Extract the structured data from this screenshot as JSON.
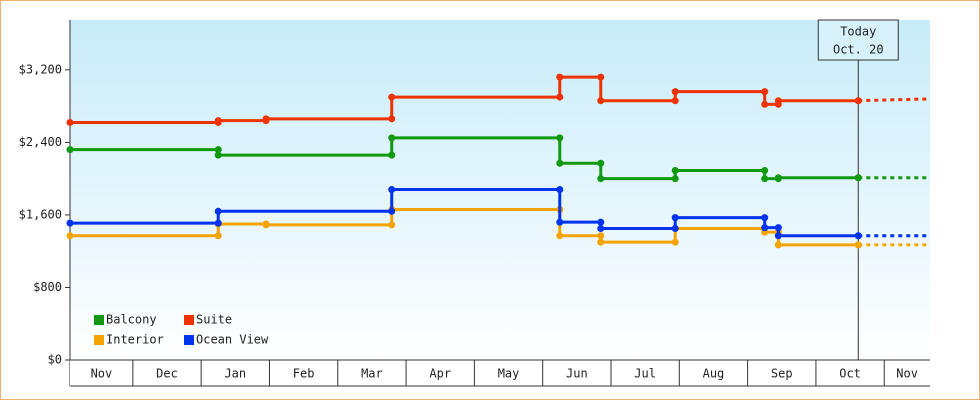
{
  "chart_data": {
    "type": "line",
    "step": true,
    "x_categories": [
      "Nov",
      "Dec",
      "Jan",
      "Feb",
      "Mar",
      "Apr",
      "May",
      "Jun",
      "Jul",
      "Aug",
      "Sep",
      "Oct",
      "Nov"
    ],
    "xlim": [
      0.08,
      12.67
    ],
    "ylim": [
      0,
      3750
    ],
    "yticks": [
      {
        "value": 0,
        "label": "$0"
      },
      {
        "value": 800,
        "label": "$800"
      },
      {
        "value": 1600,
        "label": "$1,600"
      },
      {
        "value": 2400,
        "label": "$2,400"
      },
      {
        "value": 3200,
        "label": "$3,200"
      }
    ],
    "grid": false,
    "legend": "lower left",
    "today": {
      "x": 11.62,
      "label": "Today",
      "date": "Oct. 20"
    },
    "forecast_x": [
      11.62,
      12.67
    ],
    "series": [
      {
        "name": "Balcony",
        "color": "#119911",
        "x": [
          0.08,
          2.25,
          4.79,
          7.25,
          7.85,
          8.94,
          10.25,
          10.45,
          11.62
        ],
        "values": [
          2320,
          2260,
          2450,
          2170,
          2000,
          2090,
          2000,
          2010,
          2010
        ],
        "forecast": [
          2010,
          2010
        ]
      },
      {
        "name": "Suite",
        "color": "#ee3300",
        "x": [
          0.08,
          2.25,
          2.95,
          4.79,
          7.25,
          7.85,
          8.94,
          10.25,
          10.45,
          11.62
        ],
        "values": [
          2620,
          2640,
          2660,
          2900,
          3120,
          2860,
          2960,
          2820,
          2860,
          2860
        ],
        "forecast": [
          2860,
          2880
        ]
      },
      {
        "name": "Interior",
        "color": "#f5a300",
        "x": [
          0.08,
          2.25,
          2.95,
          4.79,
          7.25,
          7.85,
          8.94,
          10.25,
          10.45,
          11.62
        ],
        "values": [
          1370,
          1500,
          1490,
          1660,
          1370,
          1300,
          1450,
          1410,
          1270,
          1270
        ],
        "forecast": [
          1270,
          1270
        ]
      },
      {
        "name": "Ocean View",
        "color": "#0033ee",
        "x": [
          0.08,
          2.25,
          4.79,
          7.25,
          7.85,
          8.94,
          10.25,
          10.45,
          11.62
        ],
        "values": [
          1510,
          1640,
          1880,
          1520,
          1450,
          1570,
          1460,
          1370,
          1370
        ],
        "forecast": [
          1370,
          1370
        ]
      }
    ]
  }
}
